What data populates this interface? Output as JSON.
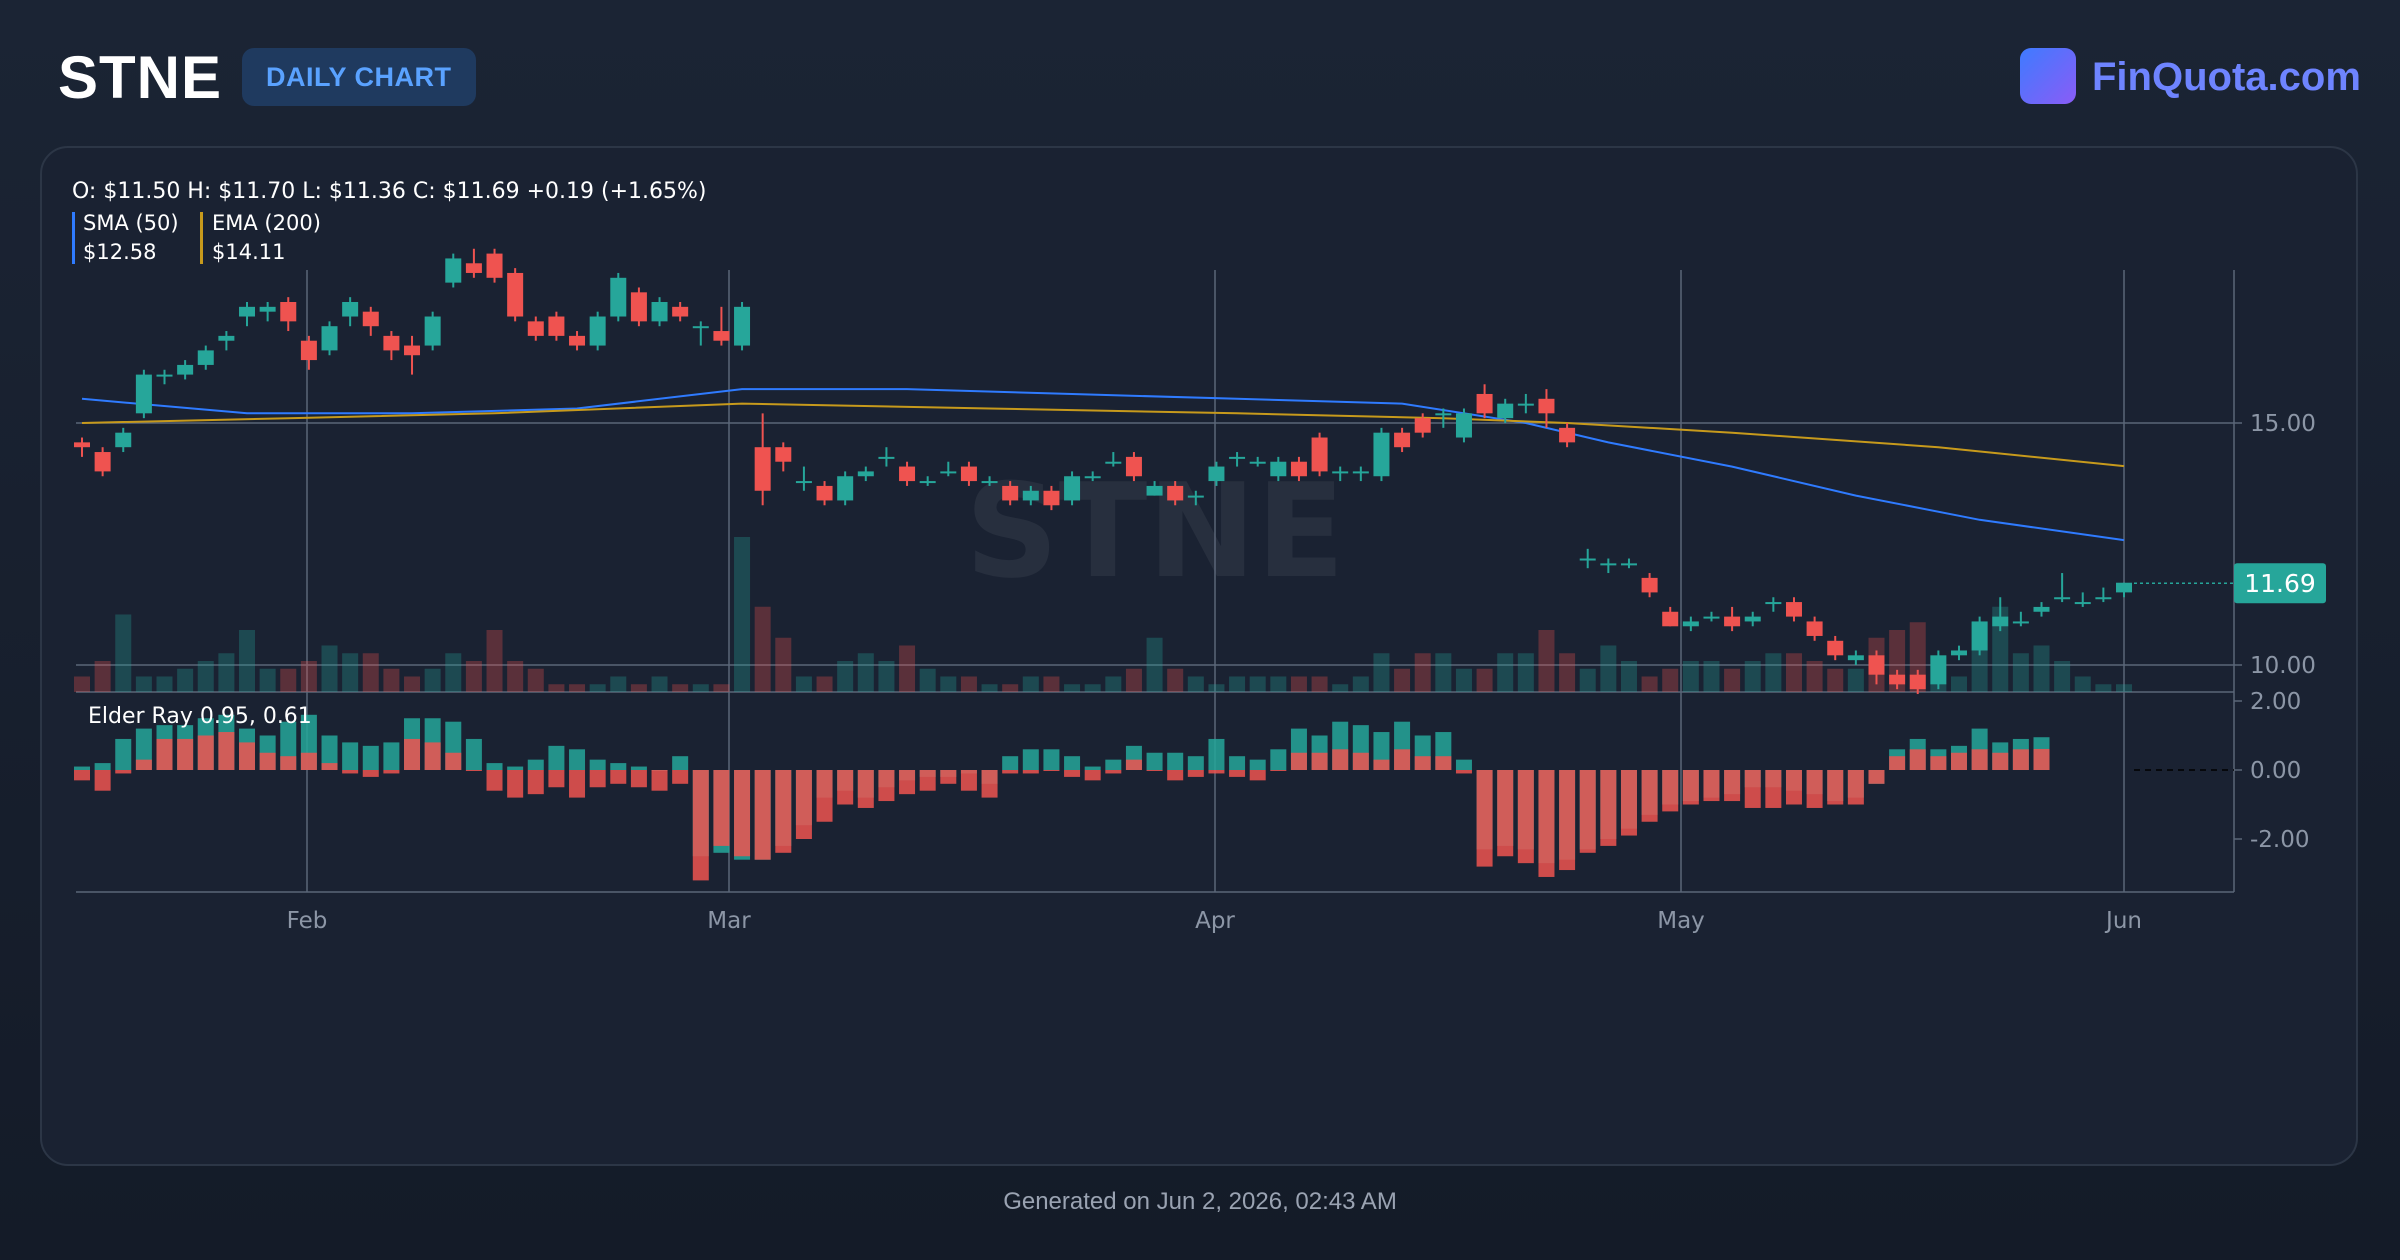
{
  "header": {
    "ticker": "STNE",
    "badge": "DAILY CHART",
    "brand": "FinQuota.com"
  },
  "legend": {
    "ohlc": "O: $11.50 H: $11.70 L: $11.36 C: $11.69 +0.19 (+1.65%)",
    "sma_label": "SMA (50)",
    "sma_value": "$12.58",
    "ema_label": "EMA (200)",
    "ema_value": "$14.11"
  },
  "watermark": "STNE",
  "last_price_label": "11.69",
  "elder_label": "Elder Ray 0.95, 0.61",
  "footer": "Generated on Jun 2, 2026, 02:43 AM",
  "colors": {
    "up": "#26a69a",
    "down": "#ef5350",
    "sma": "#2f7bff",
    "ema": "#c79a1c",
    "grid": "#5b6678",
    "badge_text": "#5aa2ff",
    "brand": "#6e84ff"
  },
  "chart_data": {
    "type": "candlestick",
    "price_axis": {
      "ticks": [
        "15.00",
        "10.00"
      ],
      "last": 11.69
    },
    "elder_axis": {
      "ticks": [
        "2.00",
        "0.00",
        "-2.00"
      ]
    },
    "x_ticks": [
      "Feb",
      "Mar",
      "Apr",
      "May",
      "Jun"
    ],
    "ohlc": [
      [
        14.6,
        14.5,
        14.7,
        14.3
      ],
      [
        14.4,
        14.0,
        14.5,
        13.9
      ],
      [
        14.5,
        14.8,
        14.9,
        14.4
      ],
      [
        15.2,
        16.0,
        16.1,
        15.1
      ],
      [
        16.0,
        16.0,
        16.1,
        15.8
      ],
      [
        16.0,
        16.2,
        16.3,
        15.9
      ],
      [
        16.2,
        16.5,
        16.6,
        16.1
      ],
      [
        16.7,
        16.8,
        16.9,
        16.5
      ],
      [
        17.2,
        17.4,
        17.5,
        17.0
      ],
      [
        17.3,
        17.4,
        17.5,
        17.1
      ],
      [
        17.5,
        17.1,
        17.6,
        16.9
      ],
      [
        16.7,
        16.3,
        16.8,
        16.1
      ],
      [
        16.5,
        17.0,
        17.1,
        16.4
      ],
      [
        17.2,
        17.5,
        17.6,
        17.0
      ],
      [
        17.3,
        17.0,
        17.4,
        16.8
      ],
      [
        16.8,
        16.5,
        16.9,
        16.3
      ],
      [
        16.6,
        16.4,
        16.8,
        16.0
      ],
      [
        16.6,
        17.2,
        17.3,
        16.5
      ],
      [
        17.9,
        18.4,
        18.5,
        17.8
      ],
      [
        18.3,
        18.1,
        18.6,
        18.0
      ],
      [
        18.5,
        18.0,
        18.6,
        17.9
      ],
      [
        18.1,
        17.2,
        18.2,
        17.1
      ],
      [
        17.1,
        16.8,
        17.2,
        16.7
      ],
      [
        17.2,
        16.8,
        17.3,
        16.7
      ],
      [
        16.8,
        16.6,
        16.9,
        16.5
      ],
      [
        16.6,
        17.2,
        17.3,
        16.5
      ],
      [
        17.2,
        18.0,
        18.1,
        17.1
      ],
      [
        17.7,
        17.1,
        17.8,
        17.0
      ],
      [
        17.1,
        17.5,
        17.6,
        17.0
      ],
      [
        17.4,
        17.2,
        17.5,
        17.1
      ],
      [
        17.0,
        17.0,
        17.1,
        16.6
      ],
      [
        16.9,
        16.7,
        17.4,
        16.6
      ],
      [
        16.6,
        17.4,
        17.5,
        16.5
      ],
      [
        14.5,
        13.6,
        15.2,
        13.3
      ],
      [
        14.5,
        14.2,
        14.6,
        14.0
      ],
      [
        13.8,
        13.8,
        14.1,
        13.6
      ],
      [
        13.7,
        13.4,
        13.8,
        13.3
      ],
      [
        13.4,
        13.9,
        14.0,
        13.3
      ],
      [
        13.9,
        14.0,
        14.1,
        13.8
      ],
      [
        14.3,
        14.3,
        14.5,
        14.1
      ],
      [
        14.1,
        13.8,
        14.2,
        13.7
      ],
      [
        13.8,
        13.8,
        13.9,
        13.7
      ],
      [
        14.0,
        14.0,
        14.2,
        13.9
      ],
      [
        14.1,
        13.8,
        14.2,
        13.7
      ],
      [
        13.8,
        13.8,
        13.9,
        13.7
      ],
      [
        13.7,
        13.4,
        13.8,
        13.3
      ],
      [
        13.4,
        13.6,
        13.7,
        13.3
      ],
      [
        13.6,
        13.3,
        13.7,
        13.2
      ],
      [
        13.4,
        13.9,
        14.0,
        13.3
      ],
      [
        13.9,
        13.9,
        14.0,
        13.8
      ],
      [
        14.2,
        14.2,
        14.4,
        14.1
      ],
      [
        14.3,
        13.9,
        14.4,
        13.8
      ],
      [
        13.5,
        13.7,
        13.8,
        13.5
      ],
      [
        13.7,
        13.4,
        13.8,
        13.3
      ],
      [
        13.5,
        13.5,
        13.6,
        13.3
      ],
      [
        13.8,
        14.1,
        14.2,
        13.7
      ],
      [
        14.3,
        14.3,
        14.4,
        14.1
      ],
      [
        14.2,
        14.2,
        14.3,
        14.1
      ],
      [
        13.9,
        14.2,
        14.3,
        13.8
      ],
      [
        14.2,
        13.9,
        14.3,
        13.8
      ],
      [
        14.7,
        14.0,
        14.8,
        13.9
      ],
      [
        14.0,
        14.0,
        14.1,
        13.8
      ],
      [
        14.0,
        14.0,
        14.1,
        13.8
      ],
      [
        13.9,
        14.8,
        14.9,
        13.8
      ],
      [
        14.8,
        14.5,
        14.9,
        14.4
      ],
      [
        15.1,
        14.8,
        15.2,
        14.7
      ],
      [
        15.2,
        15.2,
        15.3,
        14.9
      ],
      [
        14.7,
        15.2,
        15.3,
        14.6
      ],
      [
        15.6,
        15.2,
        15.8,
        15.1
      ],
      [
        15.1,
        15.4,
        15.5,
        15.0
      ],
      [
        15.4,
        15.4,
        15.6,
        15.2
      ],
      [
        15.5,
        15.2,
        15.7,
        14.9
      ],
      [
        14.9,
        14.6,
        15.0,
        14.5
      ],
      [
        12.2,
        12.2,
        12.4,
        12.0
      ],
      [
        12.1,
        12.1,
        12.2,
        11.9
      ],
      [
        12.1,
        12.1,
        12.2,
        12.0
      ],
      [
        11.8,
        11.5,
        11.9,
        11.4
      ],
      [
        11.1,
        10.8,
        11.2,
        10.8
      ],
      [
        10.8,
        10.9,
        11.0,
        10.7
      ],
      [
        11.0,
        11.0,
        11.1,
        10.9
      ],
      [
        11.0,
        10.8,
        11.2,
        10.7
      ],
      [
        10.9,
        11.0,
        11.1,
        10.8
      ],
      [
        11.3,
        11.3,
        11.4,
        11.1
      ],
      [
        11.3,
        11.0,
        11.4,
        10.9
      ],
      [
        10.9,
        10.6,
        11.0,
        10.5
      ],
      [
        10.5,
        10.2,
        10.6,
        10.1
      ],
      [
        10.1,
        10.2,
        10.3,
        10.0
      ],
      [
        10.2,
        9.8,
        10.3,
        9.6
      ],
      [
        9.8,
        9.6,
        9.9,
        9.5
      ],
      [
        9.8,
        9.5,
        9.9,
        9.4
      ],
      [
        9.6,
        10.2,
        10.3,
        9.5
      ],
      [
        10.2,
        10.3,
        10.4,
        10.1
      ],
      [
        10.3,
        10.9,
        11.0,
        10.2
      ],
      [
        10.8,
        11.0,
        11.4,
        10.7
      ],
      [
        10.9,
        10.9,
        11.1,
        10.8
      ],
      [
        11.1,
        11.2,
        11.3,
        11.0
      ],
      [
        11.4,
        11.4,
        11.9,
        11.3
      ],
      [
        11.3,
        11.3,
        11.5,
        11.2
      ],
      [
        11.4,
        11.4,
        11.6,
        11.3
      ],
      [
        11.5,
        11.7,
        11.7,
        11.4
      ]
    ],
    "volume": [
      0.1,
      0.2,
      0.5,
      0.1,
      0.1,
      0.15,
      0.2,
      0.25,
      0.4,
      0.15,
      0.15,
      0.2,
      0.3,
      0.25,
      0.25,
      0.15,
      0.1,
      0.15,
      0.25,
      0.2,
      0.4,
      0.2,
      0.15,
      0.05,
      0.05,
      0.05,
      0.1,
      0.05,
      0.1,
      0.05,
      0.05,
      0.05,
      1.0,
      0.55,
      0.35,
      0.1,
      0.1,
      0.2,
      0.25,
      0.2,
      0.3,
      0.15,
      0.1,
      0.1,
      0.05,
      0.05,
      0.1,
      0.1,
      0.05,
      0.05,
      0.1,
      0.15,
      0.35,
      0.15,
      0.1,
      0.05,
      0.1,
      0.1,
      0.1,
      0.1,
      0.1,
      0.05,
      0.1,
      0.25,
      0.15,
      0.25,
      0.25,
      0.15,
      0.15,
      0.25,
      0.25,
      0.4,
      0.25,
      0.15,
      0.3,
      0.2,
      0.1,
      0.15,
      0.2,
      0.2,
      0.15,
      0.2,
      0.25,
      0.25,
      0.2,
      0.15,
      0.15,
      0.35,
      0.4,
      0.45,
      0.05,
      0.1,
      0.45,
      0.55,
      0.25,
      0.3,
      0.2,
      0.1,
      0.05,
      0.05
    ],
    "sma50": [
      [
        0,
        15.5
      ],
      [
        8,
        15.2
      ],
      [
        16,
        15.2
      ],
      [
        24,
        15.3
      ],
      [
        32,
        15.7
      ],
      [
        40,
        15.7
      ],
      [
        48,
        15.6
      ],
      [
        56,
        15.5
      ],
      [
        64,
        15.4
      ],
      [
        70,
        15.0
      ],
      [
        74,
        14.6
      ],
      [
        80,
        14.1
      ],
      [
        86,
        13.5
      ],
      [
        92,
        13.0
      ],
      [
        99,
        12.58
      ]
    ],
    "ema200": [
      [
        0,
        15.0
      ],
      [
        10,
        15.1
      ],
      [
        20,
        15.2
      ],
      [
        32,
        15.4
      ],
      [
        44,
        15.3
      ],
      [
        56,
        15.2
      ],
      [
        66,
        15.1
      ],
      [
        72,
        15.0
      ],
      [
        80,
        14.8
      ],
      [
        90,
        14.5
      ],
      [
        99,
        14.11
      ]
    ],
    "elder_bull": [
      0.1,
      0.2,
      0.9,
      1.2,
      1.3,
      1.3,
      1.5,
      1.6,
      1.2,
      1.0,
      1.4,
      1.6,
      1.0,
      0.8,
      0.7,
      0.8,
      1.5,
      1.5,
      1.4,
      0.9,
      0.2,
      0.1,
      0.3,
      0.7,
      0.6,
      0.3,
      0.2,
      0.1,
      0.0,
      0.4,
      -2.5,
      -2.4,
      -2.6,
      -2.6,
      -2.2,
      -1.6,
      -0.8,
      -0.6,
      -0.8,
      -0.5,
      -0.3,
      -0.2,
      -0.2,
      -0.1,
      -0.4,
      0.4,
      0.6,
      0.6,
      0.4,
      0.1,
      0.3,
      0.7,
      0.5,
      0.5,
      0.4,
      0.9,
      0.4,
      0.3,
      0.6,
      1.2,
      1.0,
      1.4,
      1.3,
      1.1,
      1.4,
      1.0,
      1.1,
      0.3,
      -2.3,
      -2.2,
      -2.3,
      -2.7,
      -2.6,
      -2.3,
      -2.0,
      -1.7,
      -1.3,
      -1.0,
      -0.9,
      -0.8,
      -0.7,
      -0.5,
      -0.5,
      -0.6,
      -0.7,
      -0.9,
      -0.8,
      -0.4,
      0.6,
      0.9,
      0.6,
      0.7,
      1.2,
      0.8,
      0.9,
      0.95
    ],
    "elder_bear": [
      -0.3,
      -0.6,
      -0.1,
      0.3,
      0.9,
      0.9,
      1.0,
      1.1,
      0.8,
      0.5,
      0.4,
      0.5,
      0.2,
      -0.1,
      -0.2,
      -0.1,
      0.9,
      0.8,
      0.5,
      0.0,
      -0.6,
      -0.8,
      -0.7,
      -0.5,
      -0.8,
      -0.5,
      -0.4,
      -0.5,
      -0.6,
      -0.4,
      -3.2,
      -2.2,
      -2.5,
      -2.6,
      -2.4,
      -2.0,
      -1.5,
      -1.0,
      -1.1,
      -0.9,
      -0.7,
      -0.6,
      -0.4,
      -0.6,
      -0.8,
      -0.1,
      -0.1,
      0.0,
      -0.2,
      -0.3,
      -0.1,
      0.3,
      0.0,
      -0.3,
      -0.2,
      -0.1,
      -0.2,
      -0.3,
      0.0,
      0.5,
      0.5,
      0.6,
      0.5,
      0.3,
      0.6,
      0.4,
      0.4,
      -0.1,
      -2.8,
      -2.5,
      -2.7,
      -3.1,
      -2.9,
      -2.4,
      -2.2,
      -1.9,
      -1.5,
      -1.2,
      -1.0,
      -0.9,
      -0.9,
      -1.1,
      -1.1,
      -1.0,
      -1.1,
      -1.0,
      -1.0,
      -0.4,
      0.4,
      0.6,
      0.4,
      0.5,
      0.6,
      0.5,
      0.6,
      0.61
    ]
  }
}
